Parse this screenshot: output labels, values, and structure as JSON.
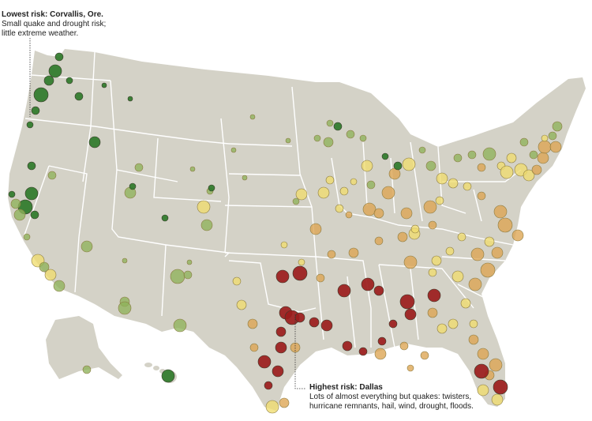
{
  "annotations": {
    "lowest": {
      "heading": "Lowest risk: Corvallis, Ore.",
      "line1": "Small quake and drought risk;",
      "line2": "little extreme weather."
    },
    "highest": {
      "heading": "Highest risk: Dallas",
      "line1": "Lots of almost everything but quakes: twisters,",
      "line2": "hurricane remnants, hail, wind, drought, floods."
    }
  },
  "colors": {
    "land": "#d4d2c7",
    "border": "#ffffff",
    "low": "#2f7a2a",
    "low_mid": "#8eb25a",
    "mid": "#f0dd6e",
    "mid_high": "#dca451",
    "high": "#9b1c1c"
  }
}
